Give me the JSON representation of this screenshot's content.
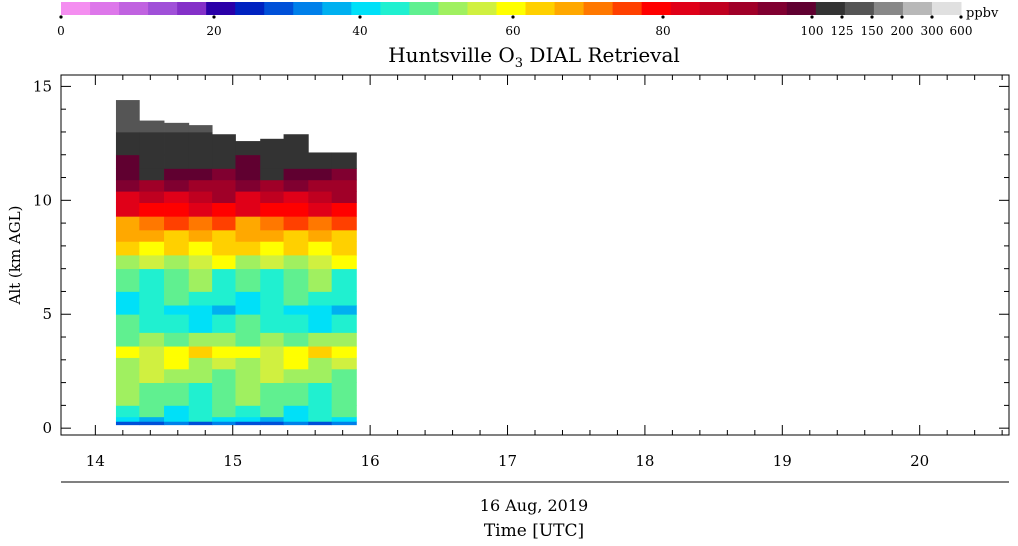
{
  "chart_data": {
    "type": "heatmap",
    "title_prefix": "Huntsville O",
    "title_subscript": "3",
    "title_suffix": " DIAL Retrieval",
    "xlabel_date": "16 Aug, 2019",
    "xlabel": "Time [UTC]",
    "ylabel": "Alt (km AGL)",
    "xlim": [
      13.75,
      20.65
    ],
    "ylim": [
      -0.3,
      15.5
    ],
    "x_ticks": [
      "14",
      "15",
      "16",
      "17",
      "18",
      "19",
      "20"
    ],
    "y_ticks": [
      "0",
      "5",
      "10",
      "15"
    ],
    "colorbar": {
      "unit": "ppbv",
      "labels": [
        "0",
        "20",
        "40",
        "60",
        "80",
        "100",
        "125",
        "150",
        "200",
        "300",
        "600"
      ],
      "colors": [
        "#f48ef0",
        "#dd77ea",
        "#c063e0",
        "#a050d8",
        "#8430c8",
        "#2a00a8",
        "#0022c0",
        "#0050d8",
        "#0080ea",
        "#00b0f0",
        "#00e0f8",
        "#20f0d0",
        "#60f090",
        "#a0f060",
        "#d0f040",
        "#ffff00",
        "#ffd000",
        "#ffa800",
        "#ff7800",
        "#ff4000",
        "#ff0000",
        "#e00018",
        "#c00020",
        "#a00028",
        "#800030",
        "#600030",
        "#333333",
        "#555555",
        "#888888",
        "#b8b8b8",
        "#e0e0e0"
      ]
    },
    "series": [
      {
        "t": 14.15,
        "top": 14.4
      },
      {
        "t": 14.32,
        "top": 13.5
      },
      {
        "t": 14.5,
        "top": 13.4
      },
      {
        "t": 14.68,
        "top": 13.3
      },
      {
        "t": 14.85,
        "top": 12.9
      },
      {
        "t": 15.02,
        "top": 12.6
      },
      {
        "t": 15.2,
        "top": 12.7
      },
      {
        "t": 15.37,
        "top": 12.9
      },
      {
        "t": 15.55,
        "top": 12.1
      },
      {
        "t": 15.72,
        "top": 12.1
      }
    ],
    "profile_end_time": 15.9,
    "profile_bottom": 0.15,
    "profile_ppbv": [
      [
        0.15,
        0.3,
        30
      ],
      [
        0.3,
        0.5,
        40
      ],
      [
        0.5,
        1.0,
        45
      ],
      [
        1.0,
        2.0,
        48
      ],
      [
        2.0,
        2.6,
        52
      ],
      [
        2.6,
        3.1,
        55
      ],
      [
        3.1,
        3.6,
        60
      ],
      [
        3.6,
        4.2,
        50
      ],
      [
        4.2,
        5.0,
        44
      ],
      [
        5.0,
        5.4,
        40
      ],
      [
        5.4,
        6.0,
        44
      ],
      [
        6.0,
        7.0,
        47
      ],
      [
        7.0,
        7.6,
        55
      ],
      [
        7.6,
        8.2,
        62
      ],
      [
        8.2,
        8.7,
        66
      ],
      [
        8.7,
        9.3,
        72
      ],
      [
        9.3,
        9.9,
        80
      ],
      [
        9.9,
        10.4,
        86
      ],
      [
        10.4,
        10.9,
        92
      ],
      [
        10.9,
        11.4,
        98
      ],
      [
        11.4,
        12.0,
        102
      ],
      [
        12.0,
        13.0,
        120
      ],
      [
        13.0,
        15.0,
        140
      ]
    ]
  }
}
